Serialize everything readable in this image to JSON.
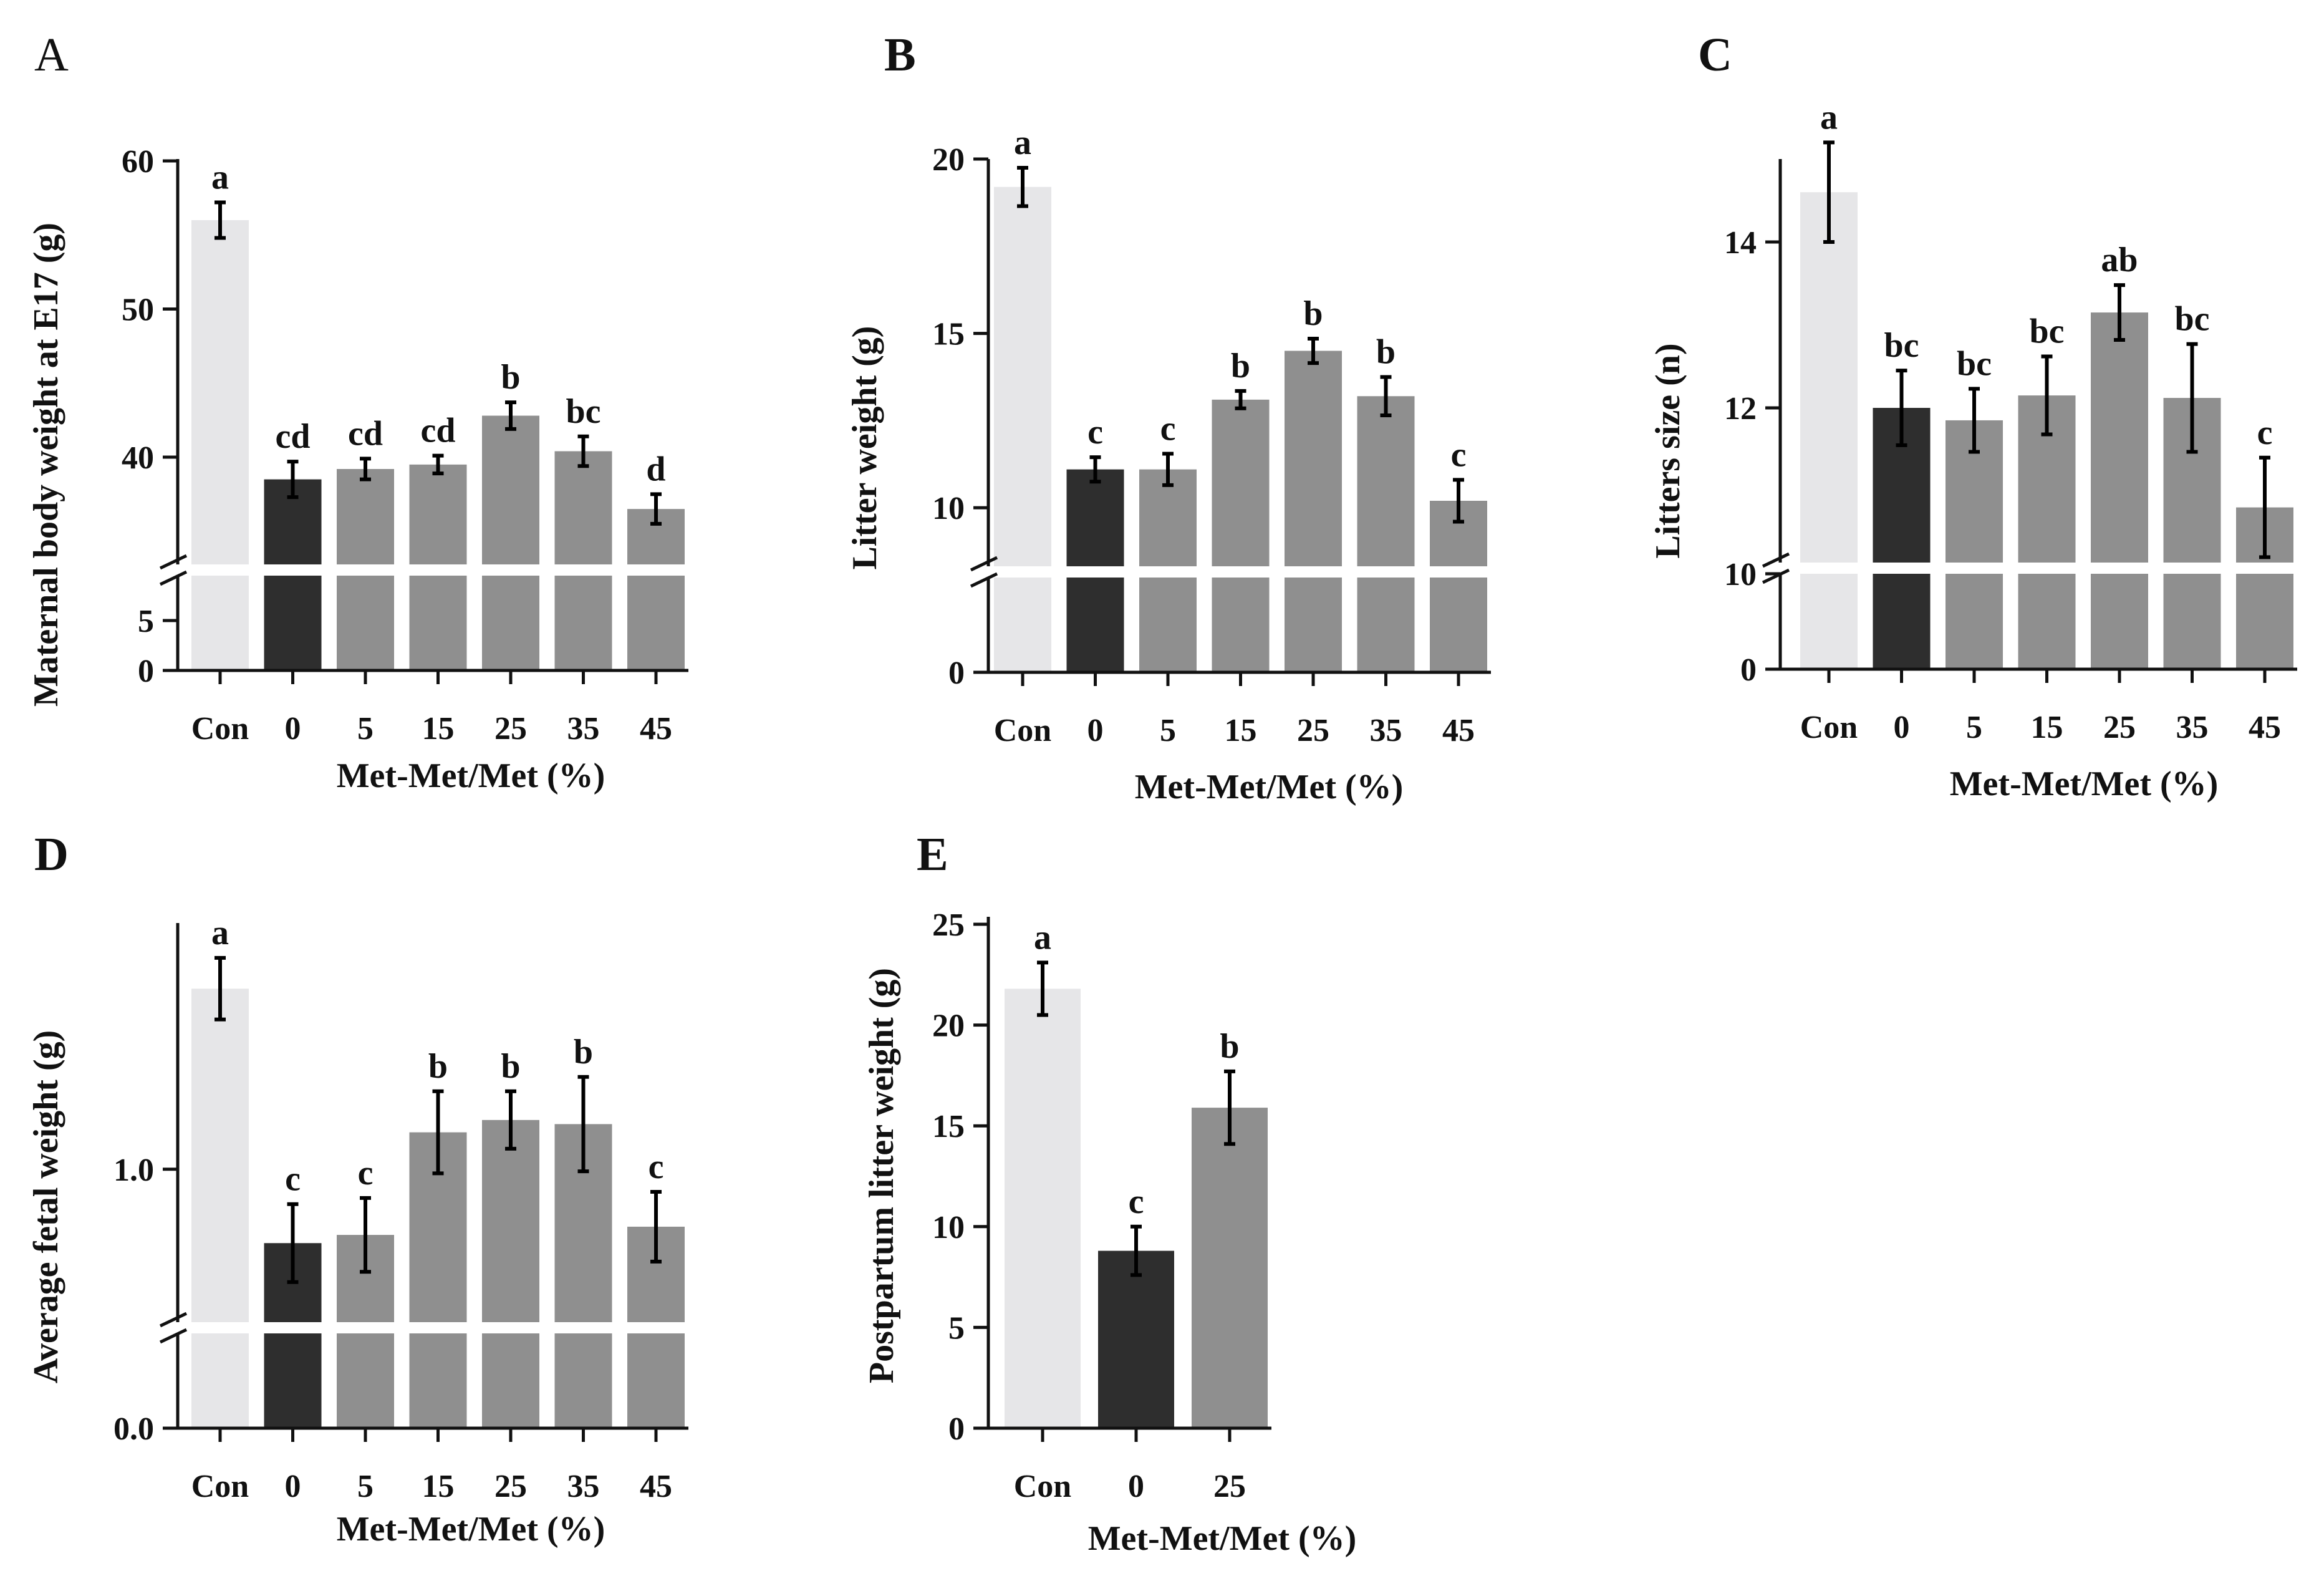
{
  "colors": {
    "control": "#e6e6e8",
    "zero": "#2e2e2e",
    "treatment": "#8f8f8f",
    "axis": "#111111",
    "break_gap": "#ffffff"
  },
  "chart_data": [
    {
      "id": "A",
      "type": "bar",
      "panel_label": "A",
      "ylabel": "Maternal body weight at E17 (g)",
      "xlabel": "Met-Met/Met (%)",
      "categories": [
        "Con",
        "0",
        "5",
        "15",
        "25",
        "35",
        "45"
      ],
      "values": [
        56,
        38.5,
        39.2,
        39.5,
        42.8,
        40.4,
        36.5
      ],
      "errors": [
        1.2,
        1.2,
        0.7,
        0.6,
        0.9,
        1.0,
        1.0
      ],
      "letters": [
        "a",
        "cd",
        "cd",
        "cd",
        "b",
        "bc",
        "d"
      ],
      "broken_axis": true,
      "lower_range": [
        0,
        10
      ],
      "upper_range": [
        32,
        60
      ],
      "lower_ticks": [
        "0",
        "5"
      ],
      "upper_ticks": [
        "40",
        "50",
        "60"
      ],
      "lower_tick_values": [
        0,
        5
      ],
      "upper_tick_values": [
        40,
        50,
        60
      ]
    },
    {
      "id": "B",
      "type": "bar",
      "panel_label": "B",
      "ylabel": "Litter weight (g)",
      "xlabel": "Met-Met/Met (%)",
      "categories": [
        "Con",
        "0",
        "5",
        "15",
        "25",
        "35",
        "45"
      ],
      "values": [
        19.2,
        11.1,
        11.1,
        13.1,
        14.5,
        13.2,
        10.2
      ],
      "errors": [
        0.55,
        0.35,
        0.45,
        0.25,
        0.35,
        0.55,
        0.6
      ],
      "letters": [
        "a",
        "c",
        "c",
        "b",
        "b",
        "b",
        "c"
      ],
      "broken_axis": true,
      "lower_range": [
        0,
        5
      ],
      "upper_range": [
        8,
        20
      ],
      "lower_ticks": [
        "0"
      ],
      "upper_ticks": [
        "10",
        "15",
        "20"
      ],
      "lower_tick_values": [
        0
      ],
      "upper_tick_values": [
        10,
        15,
        20
      ]
    },
    {
      "id": "C",
      "type": "bar",
      "panel_label": "C",
      "ylabel": "Litters size (n)",
      "xlabel": "Met-Met/Met (%)",
      "categories": [
        "Con",
        "0",
        "5",
        "15",
        "25",
        "35",
        "45"
      ],
      "values": [
        14.6,
        12.0,
        11.85,
        12.15,
        13.15,
        12.12,
        10.8
      ],
      "errors": [
        0.6,
        0.45,
        0.38,
        0.47,
        0.33,
        0.65,
        0.6
      ],
      "letters": [
        "a",
        "bc",
        "bc",
        "bc",
        "ab",
        "bc",
        "c"
      ],
      "broken_axis": true,
      "lower_range": [
        0,
        5
      ],
      "upper_range": [
        10,
        15
      ],
      "lower_ticks": [
        "0"
      ],
      "upper_ticks": [
        "10",
        "12",
        "14"
      ],
      "lower_tick_values": [
        0
      ],
      "upper_tick_values": [
        10,
        12,
        14
      ]
    },
    {
      "id": "D",
      "type": "bar",
      "panel_label": "D",
      "ylabel": "Average fetal weight (g)",
      "xlabel": "Met-Met/Met (%)",
      "categories": [
        "Con",
        "0",
        "5",
        "15",
        "25",
        "35",
        "45"
      ],
      "values": [
        1.44,
        0.82,
        0.84,
        1.09,
        1.12,
        1.11,
        0.86
      ],
      "errors": [
        0.075,
        0.095,
        0.09,
        0.1,
        0.07,
        0.115,
        0.085
      ],
      "letters": [
        "a",
        "c",
        "c",
        "b",
        "b",
        "b",
        "c"
      ],
      "broken_axis": true,
      "lower_range": [
        0,
        0.4
      ],
      "upper_range": [
        0.6,
        1.6
      ],
      "lower_ticks": [
        "0.0"
      ],
      "upper_ticks": [
        "1.0"
      ],
      "lower_tick_values": [
        0
      ],
      "upper_tick_values": [
        1.0
      ]
    },
    {
      "id": "E",
      "type": "bar",
      "panel_label": "E",
      "ylabel": "Postpartum litter weight (g)",
      "xlabel": "Met-Met/Met (%)",
      "categories": [
        "Con",
        "0",
        "25"
      ],
      "values": [
        21.8,
        8.8,
        15.9
      ],
      "errors": [
        1.3,
        1.2,
        1.8
      ],
      "letters": [
        "a",
        "c",
        "b"
      ],
      "broken_axis": false,
      "range": [
        0,
        25
      ],
      "ticks": [
        "0",
        "5",
        "10",
        "15",
        "20",
        "25"
      ],
      "tick_values": [
        0,
        5,
        10,
        15,
        20,
        25
      ]
    }
  ]
}
